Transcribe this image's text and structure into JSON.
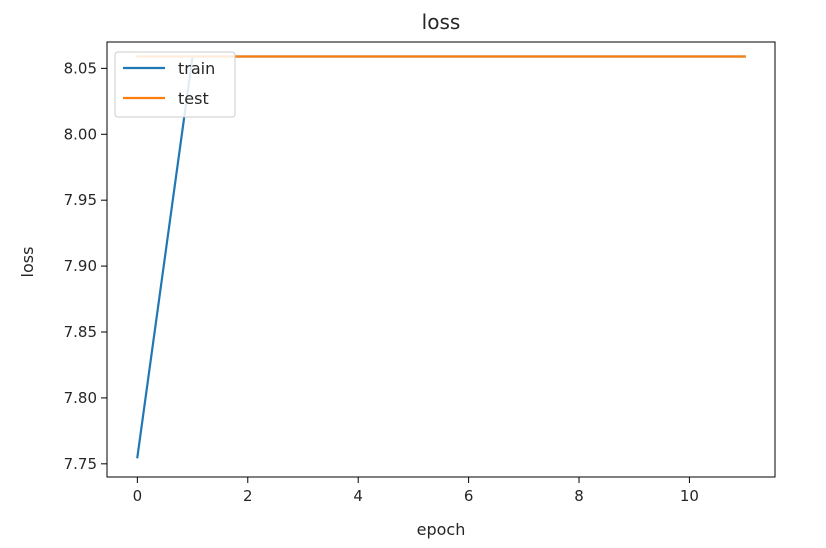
{
  "chart_data": {
    "type": "line",
    "title": "loss",
    "xlabel": "epoch",
    "ylabel": "loss",
    "xlim": [
      -0.55,
      11.55
    ],
    "ylim": [
      7.74,
      8.07
    ],
    "x_ticks": [
      0,
      2,
      4,
      6,
      8,
      10
    ],
    "y_ticks": [
      7.75,
      7.8,
      7.85,
      7.9,
      7.95,
      8.0,
      8.05
    ],
    "x_tick_labels": [
      "0",
      "2",
      "4",
      "6",
      "8",
      "10"
    ],
    "y_tick_labels": [
      "7.75",
      "7.80",
      "7.85",
      "7.90",
      "7.95",
      "8.00",
      "8.05"
    ],
    "grid": false,
    "legend_position": "top-left",
    "series": [
      {
        "name": "train",
        "color": "#1f77b4",
        "x": [
          0,
          1,
          2,
          3,
          4,
          5,
          6,
          7,
          8,
          9,
          10,
          11
        ],
        "values": [
          7.755,
          8.059,
          8.059,
          8.059,
          8.059,
          8.059,
          8.059,
          8.059,
          8.059,
          8.059,
          8.059,
          8.059
        ]
      },
      {
        "name": "test",
        "color": "#ff7f0e",
        "x": [
          0,
          1,
          2,
          3,
          4,
          5,
          6,
          7,
          8,
          9,
          10,
          11
        ],
        "values": [
          8.059,
          8.059,
          8.059,
          8.059,
          8.059,
          8.059,
          8.059,
          8.059,
          8.059,
          8.059,
          8.059,
          8.059
        ]
      }
    ]
  }
}
